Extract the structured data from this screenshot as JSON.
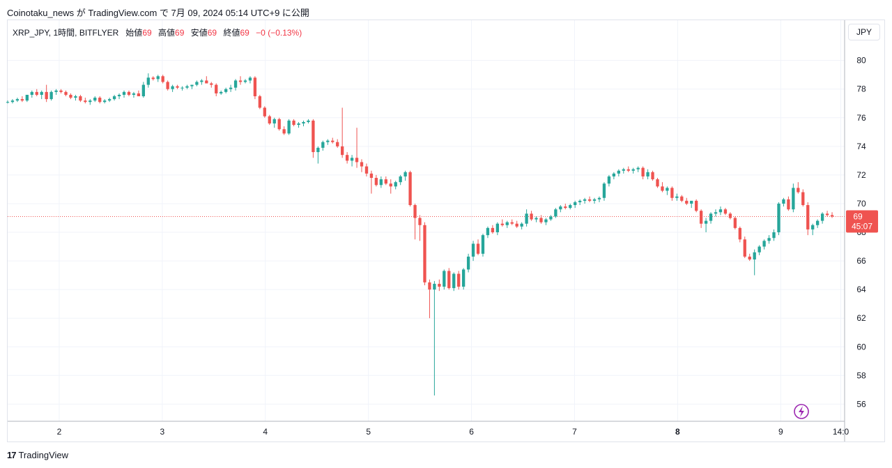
{
  "header": {
    "publish_line": "Coinotaku_news が TradingView.com で 7月 09, 2024 05:14 UTC+9 に公開"
  },
  "legend": {
    "symbol": "XRP_JPY, 1時間, BITFLYER",
    "open_label": "始値",
    "open_value": "69",
    "high_label": "高値",
    "high_value": "69",
    "low_label": "安値",
    "low_value": "69",
    "close_label": "終値",
    "close_value": "69",
    "change": "−0 (−0.13%)"
  },
  "currency_button": "JPY",
  "price_tag": {
    "price": "69",
    "countdown": "45:07"
  },
  "footer": {
    "brand": "TradingView",
    "logo_mark": "17"
  },
  "colors": {
    "up": "#26a69a",
    "down": "#ef5350",
    "grid": "#f0f3fa",
    "last_price_line": "#ef5350",
    "icon": "#9c27b0"
  },
  "icon": "lightning-icon",
  "chart_data": {
    "type": "candlestick",
    "symbol": "XRP_JPY",
    "interval": "1h",
    "y_ticks": [
      56,
      58,
      60,
      62,
      64,
      66,
      68,
      70,
      72,
      74,
      76,
      78,
      80
    ],
    "y_range": [
      54.8,
      81.3
    ],
    "x_ticks": [
      {
        "label": "2",
        "day": 2
      },
      {
        "label": "3",
        "day": 3
      },
      {
        "label": "4",
        "day": 4
      },
      {
        "label": "5",
        "day": 5
      },
      {
        "label": "6",
        "day": 6
      },
      {
        "label": "7",
        "day": 7
      },
      {
        "label": "8",
        "day": 8
      },
      {
        "label": "9",
        "day": 9
      },
      {
        "label": "14:0",
        "day": 9.583
      }
    ],
    "x_range_days": [
      1.5,
      9.62
    ],
    "last_price": 69.1,
    "grid": true,
    "candles_ohlc": [
      [
        77.1,
        77.2,
        77.0,
        77.1
      ],
      [
        77.1,
        77.3,
        77.0,
        77.2
      ],
      [
        77.2,
        77.4,
        77.1,
        77.3
      ],
      [
        77.3,
        77.5,
        77.1,
        77.2
      ],
      [
        77.2,
        77.6,
        77.1,
        77.6
      ],
      [
        77.6,
        77.9,
        77.4,
        77.8
      ],
      [
        77.8,
        78.0,
        77.5,
        77.6
      ],
      [
        77.6,
        77.9,
        77.3,
        77.8
      ],
      [
        77.8,
        78.3,
        77.1,
        77.3
      ],
      [
        77.3,
        77.9,
        77.2,
        77.8
      ],
      [
        77.8,
        78.0,
        77.6,
        77.9
      ],
      [
        77.9,
        78.0,
        77.7,
        77.8
      ],
      [
        77.8,
        77.9,
        77.5,
        77.6
      ],
      [
        77.6,
        77.7,
        77.3,
        77.4
      ],
      [
        77.4,
        77.6,
        77.2,
        77.5
      ],
      [
        77.5,
        77.6,
        77.1,
        77.2
      ],
      [
        77.2,
        77.4,
        77.0,
        77.1
      ],
      [
        77.1,
        77.3,
        76.9,
        77.2
      ],
      [
        77.2,
        77.5,
        77.1,
        77.4
      ],
      [
        77.4,
        77.5,
        77.0,
        77.1
      ],
      [
        77.1,
        77.3,
        77.0,
        77.2
      ],
      [
        77.2,
        77.4,
        77.1,
        77.3
      ],
      [
        77.3,
        77.6,
        77.2,
        77.5
      ],
      [
        77.5,
        77.7,
        77.3,
        77.6
      ],
      [
        77.6,
        77.9,
        77.4,
        77.8
      ],
      [
        77.8,
        77.9,
        77.5,
        77.6
      ],
      [
        77.6,
        77.8,
        77.4,
        77.7
      ],
      [
        77.7,
        77.9,
        77.5,
        77.5
      ],
      [
        77.5,
        78.5,
        77.4,
        78.3
      ],
      [
        78.3,
        79.1,
        78.1,
        78.8
      ],
      [
        78.8,
        78.9,
        78.6,
        78.7
      ],
      [
        78.7,
        79.0,
        78.5,
        78.9
      ],
      [
        78.9,
        79.0,
        78.4,
        78.5
      ],
      [
        78.5,
        78.6,
        77.9,
        78.0
      ],
      [
        78.0,
        78.3,
        77.8,
        78.2
      ],
      [
        78.2,
        78.3,
        78.0,
        78.1
      ],
      [
        78.1,
        78.2,
        77.9,
        78.1
      ],
      [
        78.1,
        78.3,
        78.0,
        78.2
      ],
      [
        78.2,
        78.3,
        78.0,
        78.3
      ],
      [
        78.3,
        78.6,
        78.2,
        78.5
      ],
      [
        78.5,
        78.7,
        78.3,
        78.6
      ],
      [
        78.6,
        78.9,
        78.4,
        78.4
      ],
      [
        78.4,
        78.5,
        78.1,
        78.3
      ],
      [
        78.3,
        78.4,
        77.5,
        77.7
      ],
      [
        77.7,
        77.9,
        77.6,
        77.8
      ],
      [
        77.8,
        78.1,
        77.7,
        78.0
      ],
      [
        78.0,
        78.3,
        77.8,
        78.1
      ],
      [
        78.1,
        78.7,
        77.9,
        78.6
      ],
      [
        78.6,
        78.9,
        78.3,
        78.5
      ],
      [
        78.5,
        78.7,
        78.4,
        78.6
      ],
      [
        78.6,
        78.9,
        78.4,
        78.8
      ],
      [
        78.8,
        78.9,
        77.3,
        77.5
      ],
      [
        77.5,
        77.6,
        76.6,
        76.7
      ],
      [
        76.7,
        76.8,
        76.0,
        76.1
      ],
      [
        76.1,
        76.2,
        75.5,
        75.6
      ],
      [
        75.6,
        76.0,
        75.3,
        75.9
      ],
      [
        75.9,
        76.0,
        75.1,
        75.2
      ],
      [
        75.2,
        75.4,
        74.8,
        74.9
      ],
      [
        74.9,
        75.9,
        74.8,
        75.8
      ],
      [
        75.8,
        75.9,
        75.4,
        75.5
      ],
      [
        75.5,
        75.7,
        75.3,
        75.6
      ],
      [
        75.6,
        75.8,
        75.4,
        75.7
      ],
      [
        75.7,
        75.9,
        75.6,
        75.8
      ],
      [
        75.8,
        75.9,
        73.2,
        73.6
      ],
      [
        73.6,
        74.0,
        72.8,
        73.9
      ],
      [
        73.9,
        74.4,
        73.7,
        74.3
      ],
      [
        74.3,
        74.5,
        74.1,
        74.4
      ],
      [
        74.4,
        74.6,
        74.2,
        74.3
      ],
      [
        74.3,
        74.5,
        73.9,
        74.0
      ],
      [
        74.0,
        76.7,
        73.2,
        73.4
      ],
      [
        73.4,
        73.6,
        72.8,
        73.0
      ],
      [
        73.0,
        73.4,
        72.6,
        73.2
      ],
      [
        73.2,
        75.3,
        72.5,
        72.9
      ],
      [
        72.9,
        73.1,
        72.2,
        72.6
      ],
      [
        72.6,
        72.8,
        71.9,
        72.1
      ],
      [
        72.1,
        72.3,
        70.7,
        71.8
      ],
      [
        71.8,
        72.0,
        71.2,
        71.3
      ],
      [
        71.3,
        71.9,
        71.1,
        71.7
      ],
      [
        71.7,
        71.9,
        71.3,
        71.4
      ],
      [
        71.4,
        71.7,
        70.7,
        71.2
      ],
      [
        71.2,
        71.6,
        71.0,
        71.5
      ],
      [
        71.5,
        72.0,
        71.3,
        71.9
      ],
      [
        71.9,
        72.3,
        71.6,
        72.2
      ],
      [
        72.2,
        72.3,
        69.8,
        69.9
      ],
      [
        69.9,
        70.0,
        67.5,
        69.0
      ],
      [
        69.0,
        69.2,
        67.4,
        68.5
      ],
      [
        68.5,
        68.7,
        64.3,
        64.5
      ],
      [
        64.5,
        64.7,
        62.0,
        64.0
      ],
      [
        64.0,
        64.6,
        56.6,
        64.4
      ],
      [
        64.4,
        64.7,
        63.9,
        64.2
      ],
      [
        64.2,
        65.4,
        64.0,
        65.3
      ],
      [
        65.3,
        65.5,
        64.0,
        64.1
      ],
      [
        64.1,
        65.2,
        63.9,
        65.1
      ],
      [
        65.1,
        65.3,
        64.0,
        64.2
      ],
      [
        64.2,
        65.5,
        64.0,
        65.4
      ],
      [
        65.4,
        66.5,
        65.2,
        66.3
      ],
      [
        66.3,
        67.4,
        66.0,
        67.2
      ],
      [
        67.2,
        67.5,
        66.4,
        66.5
      ],
      [
        66.5,
        67.9,
        66.3,
        67.8
      ],
      [
        67.8,
        68.4,
        67.6,
        68.3
      ],
      [
        68.3,
        68.5,
        67.9,
        68.0
      ],
      [
        68.0,
        68.7,
        67.8,
        68.6
      ],
      [
        68.6,
        68.9,
        68.4,
        68.5
      ],
      [
        68.5,
        68.8,
        68.3,
        68.7
      ],
      [
        68.7,
        68.9,
        68.5,
        68.6
      ],
      [
        68.6,
        68.8,
        68.3,
        68.4
      ],
      [
        68.4,
        68.7,
        68.2,
        68.6
      ],
      [
        68.6,
        69.6,
        68.4,
        69.3
      ],
      [
        69.3,
        69.5,
        68.8,
        68.9
      ],
      [
        68.9,
        69.1,
        68.7,
        69.0
      ],
      [
        69.0,
        69.2,
        68.6,
        68.7
      ],
      [
        68.7,
        69.0,
        68.5,
        68.9
      ],
      [
        68.9,
        69.2,
        68.8,
        69.1
      ],
      [
        69.1,
        69.7,
        69.0,
        69.6
      ],
      [
        69.6,
        69.9,
        69.4,
        69.8
      ],
      [
        69.8,
        70.0,
        69.6,
        69.7
      ],
      [
        69.7,
        70.0,
        69.6,
        69.9
      ],
      [
        69.9,
        70.2,
        69.7,
        70.1
      ],
      [
        70.1,
        70.3,
        69.9,
        70.2
      ],
      [
        70.2,
        70.4,
        70.0,
        70.3
      ],
      [
        70.3,
        70.5,
        70.1,
        70.2
      ],
      [
        70.2,
        70.4,
        70.0,
        70.3
      ],
      [
        70.3,
        70.5,
        70.1,
        70.4
      ],
      [
        70.4,
        71.5,
        70.2,
        71.4
      ],
      [
        71.4,
        72.0,
        71.2,
        71.9
      ],
      [
        71.9,
        72.2,
        71.7,
        72.1
      ],
      [
        72.1,
        72.4,
        71.9,
        72.3
      ],
      [
        72.3,
        72.5,
        72.1,
        72.4
      ],
      [
        72.4,
        72.6,
        72.2,
        72.3
      ],
      [
        72.3,
        72.5,
        72.1,
        72.4
      ],
      [
        72.4,
        72.6,
        72.2,
        72.5
      ],
      [
        72.5,
        72.6,
        71.7,
        71.9
      ],
      [
        71.9,
        72.4,
        71.7,
        72.2
      ],
      [
        72.2,
        72.3,
        71.6,
        71.7
      ],
      [
        71.7,
        71.8,
        71.1,
        71.2
      ],
      [
        71.2,
        71.5,
        70.8,
        70.9
      ],
      [
        70.9,
        71.2,
        70.6,
        71.1
      ],
      [
        71.1,
        71.2,
        70.2,
        70.4
      ],
      [
        70.4,
        70.7,
        70.2,
        70.5
      ],
      [
        70.5,
        70.6,
        70.1,
        70.2
      ],
      [
        70.2,
        70.4,
        69.9,
        70.0
      ],
      [
        70.0,
        70.1,
        69.7,
        70.2
      ],
      [
        70.2,
        70.3,
        69.4,
        69.5
      ],
      [
        69.5,
        69.6,
        68.3,
        68.6
      ],
      [
        68.6,
        69.0,
        68.0,
        68.8
      ],
      [
        68.8,
        69.4,
        68.6,
        69.3
      ],
      [
        69.3,
        69.6,
        69.1,
        69.4
      ],
      [
        69.4,
        69.8,
        69.2,
        69.6
      ],
      [
        69.6,
        69.7,
        69.2,
        69.3
      ],
      [
        69.3,
        69.4,
        68.9,
        69.0
      ],
      [
        69.0,
        69.1,
        68.2,
        68.3
      ],
      [
        68.3,
        68.4,
        67.3,
        67.5
      ],
      [
        67.5,
        67.7,
        66.2,
        66.3
      ],
      [
        66.3,
        66.5,
        66.0,
        66.1
      ],
      [
        66.1,
        66.8,
        65.0,
        66.6
      ],
      [
        66.6,
        67.1,
        66.4,
        67.0
      ],
      [
        67.0,
        67.5,
        66.8,
        67.4
      ],
      [
        67.4,
        67.8,
        67.2,
        67.6
      ],
      [
        67.6,
        68.2,
        67.4,
        68.0
      ],
      [
        68.0,
        70.1,
        67.8,
        70.0
      ],
      [
        70.0,
        70.4,
        69.8,
        70.3
      ],
      [
        70.3,
        70.5,
        69.5,
        69.6
      ],
      [
        69.6,
        71.4,
        69.4,
        71.1
      ],
      [
        71.1,
        71.5,
        70.7,
        70.8
      ],
      [
        70.8,
        71.0,
        69.8,
        69.9
      ],
      [
        69.9,
        70.1,
        67.8,
        68.2
      ],
      [
        68.2,
        68.6,
        67.8,
        68.5
      ],
      [
        68.5,
        68.9,
        68.3,
        68.8
      ],
      [
        68.8,
        69.4,
        68.6,
        69.3
      ],
      [
        69.3,
        69.5,
        69.1,
        69.2
      ],
      [
        69.2,
        69.4,
        69.0,
        69.1
      ]
    ],
    "candle_spacing_days": 0.04705
  }
}
